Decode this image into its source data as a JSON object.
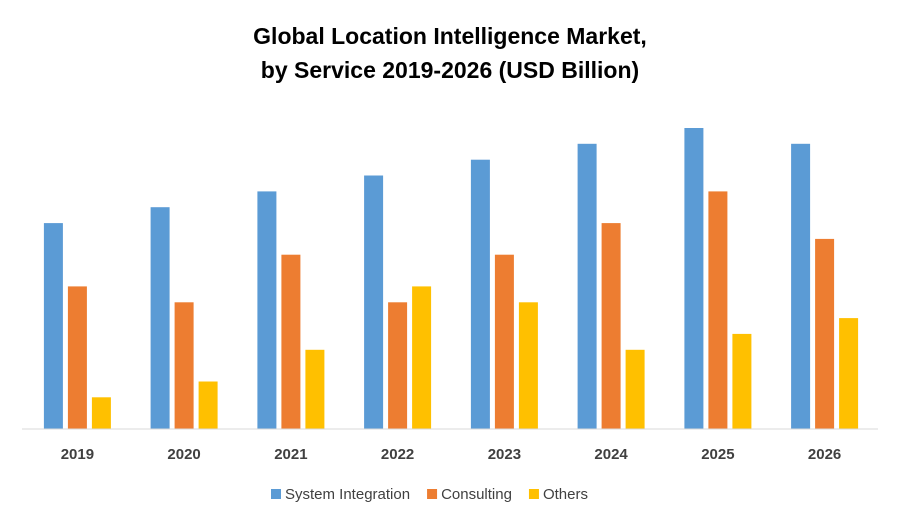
{
  "chart_data": {
    "type": "bar",
    "title_lines": [
      "Global Location Intelligence Market,",
      "by Service 2019-2026 (USD Billion)"
    ],
    "categories": [
      "2019",
      "2020",
      "2021",
      "2022",
      "2023",
      "2024",
      "2025",
      "2026"
    ],
    "series": [
      {
        "name": "System Integration",
        "color": "#5B9BD5",
        "values": [
          13,
          14,
          15,
          16,
          17,
          18,
          19,
          18
        ]
      },
      {
        "name": "Consulting",
        "color": "#ED7D31",
        "values": [
          9,
          8,
          11,
          8,
          11,
          13,
          15,
          12
        ]
      },
      {
        "name": "Others",
        "color": "#FFC000",
        "values": [
          2,
          3,
          5,
          9,
          8,
          5,
          6,
          7
        ]
      }
    ],
    "ylim": [
      0,
      19
    ],
    "grid": false,
    "legend_position": "bottom",
    "xlabel": "",
    "ylabel": ""
  }
}
